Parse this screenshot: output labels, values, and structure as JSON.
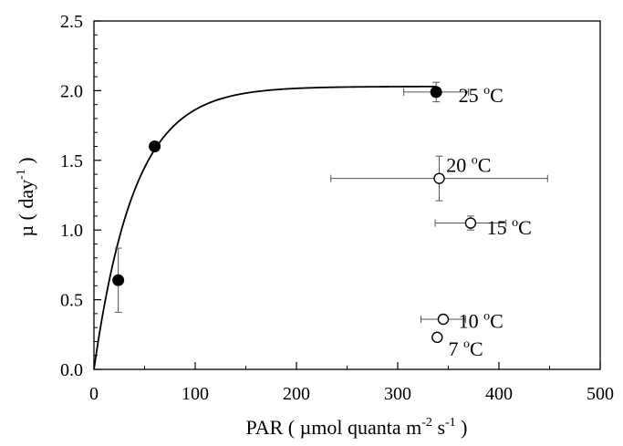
{
  "chart_data": {
    "type": "scatter",
    "xlabel": {
      "pre": "PAR  ( µmol quanta m",
      "sup1": "-2",
      "mid": " s",
      "sup2": "-1",
      "post": " )"
    },
    "ylabel": {
      "pre": "µ  ( day",
      "sup": "-1",
      "post": " )"
    },
    "xlim": [
      0,
      500
    ],
    "ylim": [
      0,
      2.5
    ],
    "xticks": [
      "0",
      "100",
      "200",
      "300",
      "400",
      "500"
    ],
    "yticks": [
      "0.0",
      "0.5",
      "1.0",
      "1.5",
      "2.0",
      "2.5"
    ],
    "grid": false,
    "series": [
      {
        "marker": "filled",
        "points": [
          {
            "x": 24,
            "y": 0.64,
            "yerr": 0.23
          },
          {
            "x": 60,
            "y": 1.6
          },
          {
            "x": 338,
            "y": 1.99,
            "xerr": 32,
            "yerr": 0.07
          }
        ]
      },
      {
        "marker": "open",
        "points": [
          {
            "x": 341,
            "y": 1.37,
            "xerr": 107,
            "yerr": 0.16
          },
          {
            "x": 372,
            "y": 1.05,
            "xerr": 35,
            "yerr": 0.05
          },
          {
            "x": 345,
            "y": 0.36,
            "xerr": 22,
            "yerr": 0.03
          },
          {
            "x": 339,
            "y": 0.23,
            "yerr": 0.02
          }
        ]
      }
    ],
    "fit_curve": {
      "equation": "mu = 2.03 * (1 - exp(-PAR / 40))"
    },
    "annotations": [
      {
        "temp": "25",
        "sup": "o",
        "unit": "C",
        "x": 360,
        "y": 1.97
      },
      {
        "temp": "20",
        "sup": "o",
        "unit": "C",
        "x": 348,
        "y": 1.47
      },
      {
        "temp": "15",
        "sup": "o",
        "unit": "C",
        "x": 388,
        "y": 1.02
      },
      {
        "temp": "10",
        "sup": "o",
        "unit": "C",
        "x": 360,
        "y": 0.35
      },
      {
        "temp": "7",
        "sup": "o",
        "unit": "C",
        "x": 350,
        "y": 0.15
      }
    ]
  }
}
